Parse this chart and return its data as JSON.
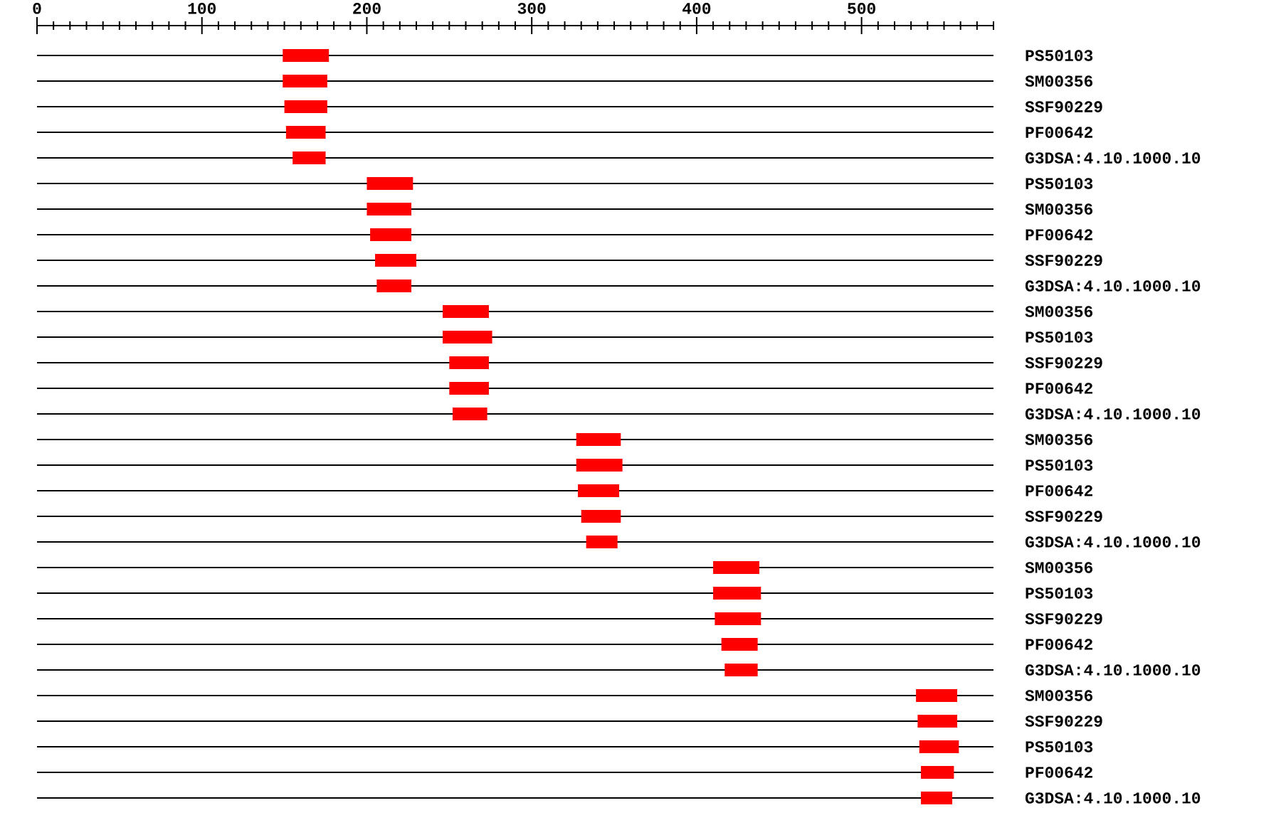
{
  "chart_data": {
    "type": "bar",
    "orientation": "horizontal",
    "categories": [
      "PS50103",
      "SM00356",
      "SSF90229",
      "PF00642",
      "G3DSA:4.10.1000.10",
      "PS50103",
      "SM00356",
      "PF00642",
      "SSF90229",
      "G3DSA:4.10.1000.10",
      "SM00356",
      "PS50103",
      "SSF90229",
      "PF00642",
      "G3DSA:4.10.1000.10",
      "SM00356",
      "PS50103",
      "PF00642",
      "SSF90229",
      "G3DSA:4.10.1000.10",
      "SM00356",
      "PS50103",
      "SSF90229",
      "PF00642",
      "G3DSA:4.10.1000.10",
      "SM00356",
      "SSF90229",
      "PS50103",
      "PF00642",
      "G3DSA:4.10.1000.10"
    ],
    "base": [
      149,
      149,
      150,
      151,
      155,
      200,
      200,
      202,
      205,
      206,
      246,
      246,
      250,
      250,
      252,
      327,
      327,
      328,
      330,
      333,
      410,
      410,
      411,
      415,
      417,
      533,
      534,
      535,
      536,
      536
    ],
    "values": [
      28,
      27,
      26,
      24,
      20,
      28,
      27,
      25,
      25,
      21,
      28,
      30,
      24,
      24,
      21,
      27,
      28,
      25,
      24,
      19,
      28,
      29,
      28,
      22,
      20,
      25,
      24,
      24,
      20,
      19
    ],
    "color": "#ff0000",
    "xlim": [
      0,
      580
    ],
    "xticks": [
      0,
      {
        "value": 10,
        "label": null
      },
      {
        "value": 20,
        "label": null
      },
      {
        "value": 30,
        "label": null
      },
      {
        "value": 40,
        "label": null
      },
      {
        "value": 50,
        "label": null
      },
      {
        "value": 60,
        "label": null
      },
      {
        "value": 70,
        "label": null
      },
      {
        "value": 80,
        "label": null
      },
      {
        "value": 90,
        "label": null
      },
      100,
      {
        "value": 110,
        "label": null
      },
      {
        "value": 120,
        "label": null
      },
      {
        "value": 130,
        "label": null
      },
      {
        "value": 140,
        "label": null
      },
      {
        "value": 150,
        "label": null
      },
      {
        "value": 160,
        "label": null
      },
      {
        "value": 170,
        "label": null
      },
      {
        "value": 180,
        "label": null
      },
      {
        "value": 190,
        "label": null
      },
      200,
      {
        "value": 210,
        "label": null
      },
      {
        "value": 220,
        "label": null
      },
      {
        "value": 230,
        "label": null
      },
      {
        "value": 240,
        "label": null
      },
      {
        "value": 250,
        "label": null
      },
      {
        "value": 260,
        "label": null
      },
      {
        "value": 270,
        "label": null
      },
      {
        "value": 280,
        "label": null
      },
      {
        "value": 290,
        "label": null
      },
      300,
      {
        "value": 310,
        "label": null
      },
      {
        "value": 320,
        "label": null
      },
      {
        "value": 330,
        "label": null
      },
      {
        "value": 340,
        "label": null
      },
      {
        "value": 350,
        "label": null
      },
      {
        "value": 360,
        "label": null
      },
      {
        "value": 370,
        "label": null
      },
      {
        "value": 380,
        "label": null
      },
      {
        "value": 390,
        "label": null
      },
      400,
      {
        "value": 410,
        "label": null
      },
      {
        "value": 420,
        "label": null
      },
      {
        "value": 430,
        "label": null
      },
      {
        "value": 440,
        "label": null
      },
      {
        "value": 450,
        "label": null
      },
      {
        "value": 460,
        "label": null
      },
      {
        "value": 470,
        "label": null
      },
      {
        "value": 480,
        "label": null
      },
      {
        "value": 490,
        "label": null
      },
      500,
      {
        "value": 510,
        "label": null
      },
      {
        "value": 520,
        "label": null
      },
      {
        "value": 530,
        "label": null
      },
      {
        "value": 540,
        "label": null
      },
      {
        "value": 550,
        "label": null
      },
      {
        "value": 560,
        "label": null
      },
      {
        "value": 570,
        "label": null
      },
      {
        "value": 580,
        "label": null
      }
    ],
    "grid": "y"
  }
}
